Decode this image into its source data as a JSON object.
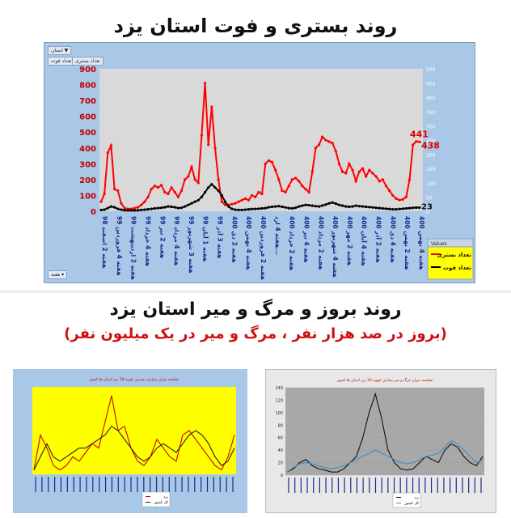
{
  "top": {
    "title": "روند بستری و فوت استان یزد",
    "filter_province": "استان",
    "filter_tab_hosp": "تعداد بستری",
    "filter_tab_death": "تعداد فوت",
    "filter_week": "هفته",
    "legend_title": "Values"
  },
  "bottom": {
    "title": "روند بروز و مرگ و میر استان یزد",
    "subtitle": "(بروز در صد هزار نفر ، مرگ و میر در یک میلیون نفر)"
  },
  "chart_data": [
    {
      "type": "line",
      "title": "روند بستری و فوت استان یزد",
      "y_left_ticks": [
        "0",
        "100",
        "200",
        "300",
        "400",
        "500",
        "600",
        "700",
        "800",
        "900"
      ],
      "y_right_ticks": [
        "0",
        "50",
        "100",
        "150",
        "200",
        "250",
        "300",
        "350",
        "400",
        "450",
        "500"
      ],
      "ylim_left": [
        0,
        900
      ],
      "ylim_right": [
        0,
        500
      ],
      "x_ticks": [
        "هفته 2 اسفند 98",
        "هفته 4 فروردین 99",
        "هفته 2 اردیبهشت 99",
        "هفته 4 خرداد 99",
        "هفته 2 تیر 99",
        "هفته 4 مرداد 99",
        "هفته 3 شهریور 99",
        "هفته 1 آبان 99",
        "هفته 3 آذر 99",
        "هفته 2 دی 400",
        "هفته 4 بهمن 400",
        "هفته 2 فروردین 400",
        "هفته 4 ارد...",
        "هفته 2 خرداد 400",
        "هفته 4 تیر 400",
        "هفته 2 مرداد 400",
        "هفته 4 شهریور 400",
        "هفته 2 مهر 400",
        "هفته 4 آبان 400",
        "هفته 2 آذر 400",
        "هفته 4 دی 400",
        "هفته 2 بهمن 400",
        "هفته 4 بهمن 400"
      ],
      "grid": false,
      "legend_placement": "bottom-right",
      "series": [
        {
          "name": "تعداد بستری",
          "color": "#ff0000",
          "values": [
            60,
            110,
            370,
            415,
            140,
            130,
            50,
            20,
            15,
            15,
            20,
            25,
            40,
            60,
            90,
            140,
            160,
            150,
            165,
            120,
            110,
            150,
            120,
            90,
            130,
            200,
            220,
            280,
            200,
            180,
            480,
            810,
            420,
            660,
            400,
            200,
            60,
            40,
            40,
            45,
            50,
            60,
            70,
            80,
            70,
            100,
            90,
            120,
            110,
            300,
            320,
            310,
            260,
            200,
            130,
            120,
            160,
            200,
            210,
            190,
            160,
            140,
            120,
            250,
            400,
            420,
            470,
            450,
            440,
            430,
            380,
            300,
            250,
            240,
            300,
            260,
            190,
            250,
            270,
            220,
            260,
            240,
            220,
            190,
            200,
            160,
            130,
            100,
            80,
            70,
            75,
            90,
            200,
            420,
            441,
            438
          ],
          "last_label": "441",
          "second_label": "438"
        },
        {
          "name": "تعداد فوت",
          "color": "#000000",
          "values": [
            8,
            10,
            20,
            30,
            25,
            15,
            10,
            6,
            5,
            5,
            5,
            6,
            8,
            10,
            12,
            15,
            18,
            20,
            22,
            25,
            30,
            28,
            25,
            20,
            22,
            30,
            40,
            50,
            60,
            70,
            90,
            120,
            150,
            170,
            150,
            130,
            100,
            60,
            30,
            15,
            10,
            8,
            8,
            10,
            12,
            14,
            15,
            16,
            18,
            20,
            25,
            28,
            30,
            32,
            28,
            24,
            20,
            18,
            22,
            30,
            35,
            40,
            38,
            35,
            32,
            30,
            36,
            42,
            50,
            55,
            48,
            40,
            35,
            30,
            28,
            30,
            35,
            32,
            30,
            28,
            26,
            24,
            22,
            20,
            18,
            16,
            14,
            12,
            12,
            14,
            16,
            18,
            20,
            22,
            23,
            23
          ],
          "last_label": "23"
        }
      ]
    },
    {
      "type": "line",
      "title": "مقایسه میزان بیماران بستری کووید-19 بین استان ها کشور",
      "ylim": [
        0,
        1
      ],
      "series": [
        {
          "name": "یزد",
          "color": "#cc0000",
          "values": [
            0.05,
            0.45,
            0.3,
            0.1,
            0.05,
            0.1,
            0.2,
            0.15,
            0.25,
            0.35,
            0.3,
            0.6,
            0.9,
            0.5,
            0.55,
            0.3,
            0.15,
            0.1,
            0.2,
            0.4,
            0.3,
            0.2,
            0.15,
            0.45,
            0.5,
            0.4,
            0.3,
            0.2,
            0.1,
            0.05,
            0.2,
            0.45
          ]
        },
        {
          "name": "کل کشور",
          "color": "#222222",
          "values": [
            0.05,
            0.2,
            0.35,
            0.2,
            0.15,
            0.2,
            0.25,
            0.3,
            0.3,
            0.35,
            0.4,
            0.45,
            0.55,
            0.5,
            0.4,
            0.3,
            0.2,
            0.15,
            0.2,
            0.3,
            0.35,
            0.3,
            0.25,
            0.35,
            0.45,
            0.5,
            0.45,
            0.35,
            0.2,
            0.1,
            0.15,
            0.3
          ]
        }
      ]
    },
    {
      "type": "line",
      "title": "مقایسه میزان مرگ و میر بیماران کووید-19 بین استان ها کشور",
      "ylim": [
        0,
        140
      ],
      "y_ticks": [
        "0",
        "20",
        "40",
        "60",
        "80",
        "100",
        "120",
        "140"
      ],
      "series": [
        {
          "name": "یزد",
          "color": "#111111",
          "values": [
            5,
            10,
            20,
            25,
            15,
            10,
            8,
            5,
            5,
            10,
            20,
            30,
            60,
            100,
            130,
            90,
            40,
            20,
            10,
            8,
            10,
            20,
            30,
            25,
            20,
            40,
            50,
            45,
            30,
            20,
            15,
            30
          ]
        },
        {
          "name": "کل کشور",
          "color": "#3a8fd0",
          "values": [
            5,
            12,
            18,
            20,
            18,
            15,
            12,
            10,
            12,
            15,
            20,
            25,
            30,
            35,
            40,
            35,
            30,
            25,
            20,
            18,
            20,
            25,
            30,
            32,
            35,
            45,
            55,
            50,
            40,
            30,
            20,
            25
          ]
        }
      ]
    }
  ]
}
